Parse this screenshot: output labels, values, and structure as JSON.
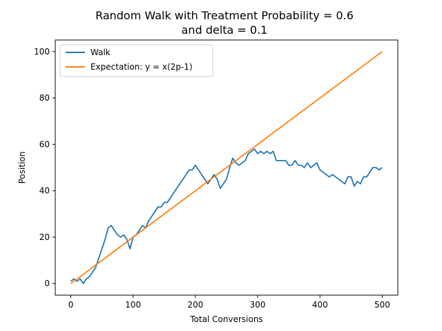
{
  "chart_data": {
    "type": "line",
    "title": [
      "Random Walk with Treatment Probability = 0.6",
      "and delta = 0.1"
    ],
    "xlabel": "Total Conversions",
    "ylabel": "Position",
    "xlim": [
      -25,
      525
    ],
    "ylim": [
      -5,
      105
    ],
    "xticks": [
      0,
      100,
      200,
      300,
      400,
      500
    ],
    "yticks": [
      0,
      20,
      40,
      60,
      80,
      100
    ],
    "xtick_labels": [
      "0",
      "100",
      "200",
      "300",
      "400",
      "500"
    ],
    "ytick_labels": [
      "0",
      "20",
      "40",
      "60",
      "80",
      "100"
    ],
    "grid": false,
    "legend_position": "upper-left",
    "series": [
      {
        "name": "Walk",
        "color": "#1f77b4",
        "points": [
          [
            0,
            1
          ],
          [
            5,
            2
          ],
          [
            10,
            1
          ],
          [
            15,
            2
          ],
          [
            20,
            0
          ],
          [
            25,
            2
          ],
          [
            30,
            3
          ],
          [
            35,
            5
          ],
          [
            40,
            7
          ],
          [
            45,
            11
          ],
          [
            50,
            15
          ],
          [
            55,
            19
          ],
          [
            60,
            24
          ],
          [
            65,
            25
          ],
          [
            70,
            23
          ],
          [
            75,
            21
          ],
          [
            80,
            20
          ],
          [
            85,
            21
          ],
          [
            90,
            19
          ],
          [
            95,
            15
          ],
          [
            100,
            20
          ],
          [
            105,
            21
          ],
          [
            110,
            23
          ],
          [
            115,
            25
          ],
          [
            120,
            24
          ],
          [
            125,
            27
          ],
          [
            130,
            29
          ],
          [
            135,
            31
          ],
          [
            140,
            33
          ],
          [
            145,
            33
          ],
          [
            150,
            35
          ],
          [
            155,
            35
          ],
          [
            160,
            37
          ],
          [
            165,
            39
          ],
          [
            170,
            41
          ],
          [
            175,
            43
          ],
          [
            180,
            45
          ],
          [
            185,
            47
          ],
          [
            190,
            49
          ],
          [
            195,
            49
          ],
          [
            200,
            51
          ],
          [
            205,
            49
          ],
          [
            210,
            47
          ],
          [
            215,
            45
          ],
          [
            220,
            43
          ],
          [
            225,
            45
          ],
          [
            230,
            47
          ],
          [
            235,
            45
          ],
          [
            240,
            41
          ],
          [
            245,
            43
          ],
          [
            250,
            45
          ],
          [
            255,
            50
          ],
          [
            260,
            54
          ],
          [
            265,
            52
          ],
          [
            270,
            51
          ],
          [
            275,
            52
          ],
          [
            280,
            53
          ],
          [
            285,
            56
          ],
          [
            290,
            57
          ],
          [
            295,
            58
          ],
          [
            300,
            56
          ],
          [
            305,
            57
          ],
          [
            310,
            56
          ],
          [
            315,
            57
          ],
          [
            320,
            56
          ],
          [
            325,
            57
          ],
          [
            330,
            53
          ],
          [
            335,
            53
          ],
          [
            340,
            53
          ],
          [
            345,
            53
          ],
          [
            350,
            51
          ],
          [
            355,
            51
          ],
          [
            360,
            53
          ],
          [
            365,
            51
          ],
          [
            370,
            51
          ],
          [
            375,
            50
          ],
          [
            380,
            52
          ],
          [
            385,
            50
          ],
          [
            390,
            51
          ],
          [
            395,
            52
          ],
          [
            400,
            49
          ],
          [
            405,
            48
          ],
          [
            410,
            47
          ],
          [
            415,
            46
          ],
          [
            420,
            47
          ],
          [
            425,
            46
          ],
          [
            430,
            45
          ],
          [
            435,
            44
          ],
          [
            440,
            43
          ],
          [
            445,
            46
          ],
          [
            450,
            46
          ],
          [
            455,
            42
          ],
          [
            460,
            44
          ],
          [
            465,
            43
          ],
          [
            470,
            46
          ],
          [
            475,
            46
          ],
          [
            480,
            48
          ],
          [
            485,
            50
          ],
          [
            490,
            50
          ],
          [
            495,
            49
          ],
          [
            500,
            50
          ]
        ]
      },
      {
        "name": "Expectation: y = x(2p-1)",
        "color": "#ff7f0e",
        "points": [
          [
            0,
            0
          ],
          [
            500,
            100
          ]
        ]
      }
    ]
  }
}
